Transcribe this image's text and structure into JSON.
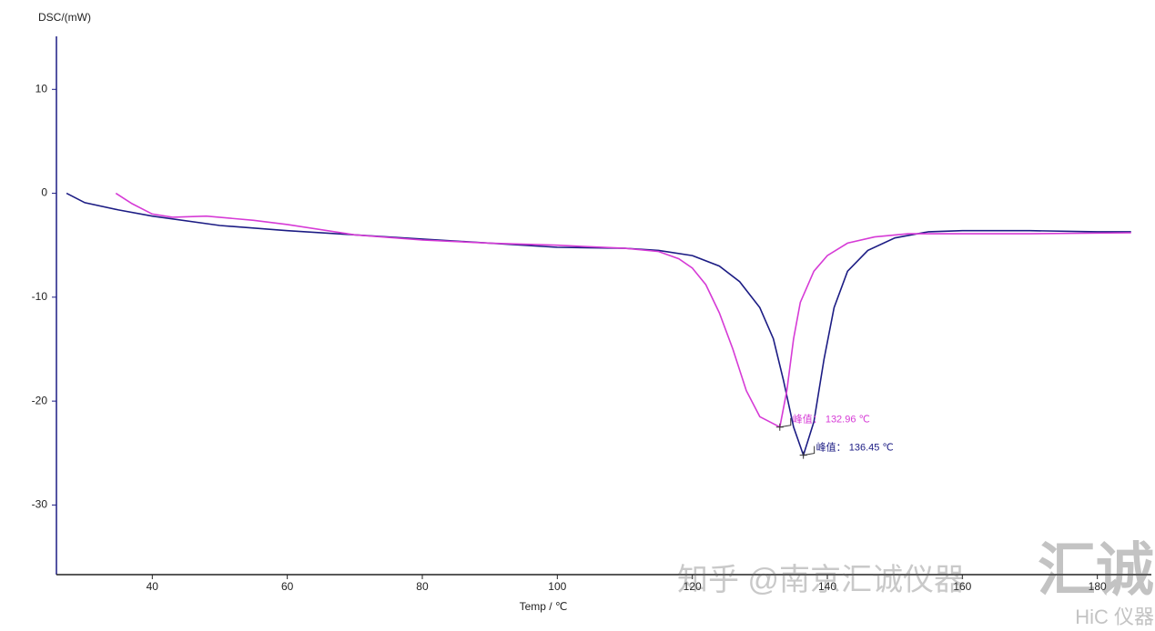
{
  "chart_data": {
    "type": "line",
    "y_label": "DSC/(mW)",
    "x_label": "Temp / ℃",
    "xlim": [
      25.8,
      188
    ],
    "ylim": [
      -36.7,
      15.1
    ],
    "xticks": [
      40,
      60,
      80,
      100,
      120,
      140,
      160,
      180
    ],
    "yticks": [
      -30,
      -20,
      -10,
      0,
      10
    ],
    "series": [
      {
        "color": "#1c1c84",
        "x": [
          27.3,
          30,
          35,
          40,
          50,
          60,
          70,
          80,
          90,
          100,
          110,
          115,
          120,
          124,
          127,
          130,
          132,
          133.5,
          135,
          136.45,
          138,
          139.5,
          141,
          143,
          146,
          150,
          155,
          160,
          170,
          180,
          185
        ],
        "values": [
          0,
          -0.9,
          -1.6,
          -2.2,
          -3.1,
          -3.6,
          -4.0,
          -4.4,
          -4.8,
          -5.2,
          -5.3,
          -5.5,
          -6.0,
          -7.0,
          -8.5,
          -11,
          -14,
          -18,
          -22.5,
          -25.2,
          -22,
          -16,
          -11,
          -7.5,
          -5.5,
          -4.3,
          -3.7,
          -3.6,
          -3.6,
          -3.7,
          -3.7
        ]
      },
      {
        "color": "#d63bd6",
        "x": [
          34.6,
          37,
          40,
          43,
          48,
          55,
          60,
          70,
          80,
          90,
          100,
          110,
          115,
          118,
          120,
          122,
          124,
          126,
          128,
          130,
          132.96,
          134,
          135,
          136,
          138,
          140,
          143,
          147,
          152,
          160,
          170,
          185
        ],
        "values": [
          0,
          -1.0,
          -2.0,
          -2.3,
          -2.2,
          -2.6,
          -3.0,
          -4.0,
          -4.5,
          -4.8,
          -5.0,
          -5.3,
          -5.6,
          -6.3,
          -7.2,
          -8.8,
          -11.5,
          -15,
          -19,
          -21.5,
          -22.5,
          -19,
          -14,
          -10.5,
          -7.5,
          -6,
          -4.8,
          -4.2,
          -3.9,
          -3.9,
          -3.9,
          -3.8
        ]
      }
    ],
    "annotations": [
      {
        "text": "峰值： 132.96 ℃",
        "x": 132.96,
        "y": -22.5,
        "color": "#d63bd6"
      },
      {
        "text": "峰值： 136.45 ℃",
        "x": 136.45,
        "y": -25.2,
        "color": "#1c1c84"
      }
    ]
  },
  "watermark": {
    "text": "知乎 @南京汇诚仪器",
    "logo": "汇诚",
    "logo_sub": "HiC 仪器"
  }
}
